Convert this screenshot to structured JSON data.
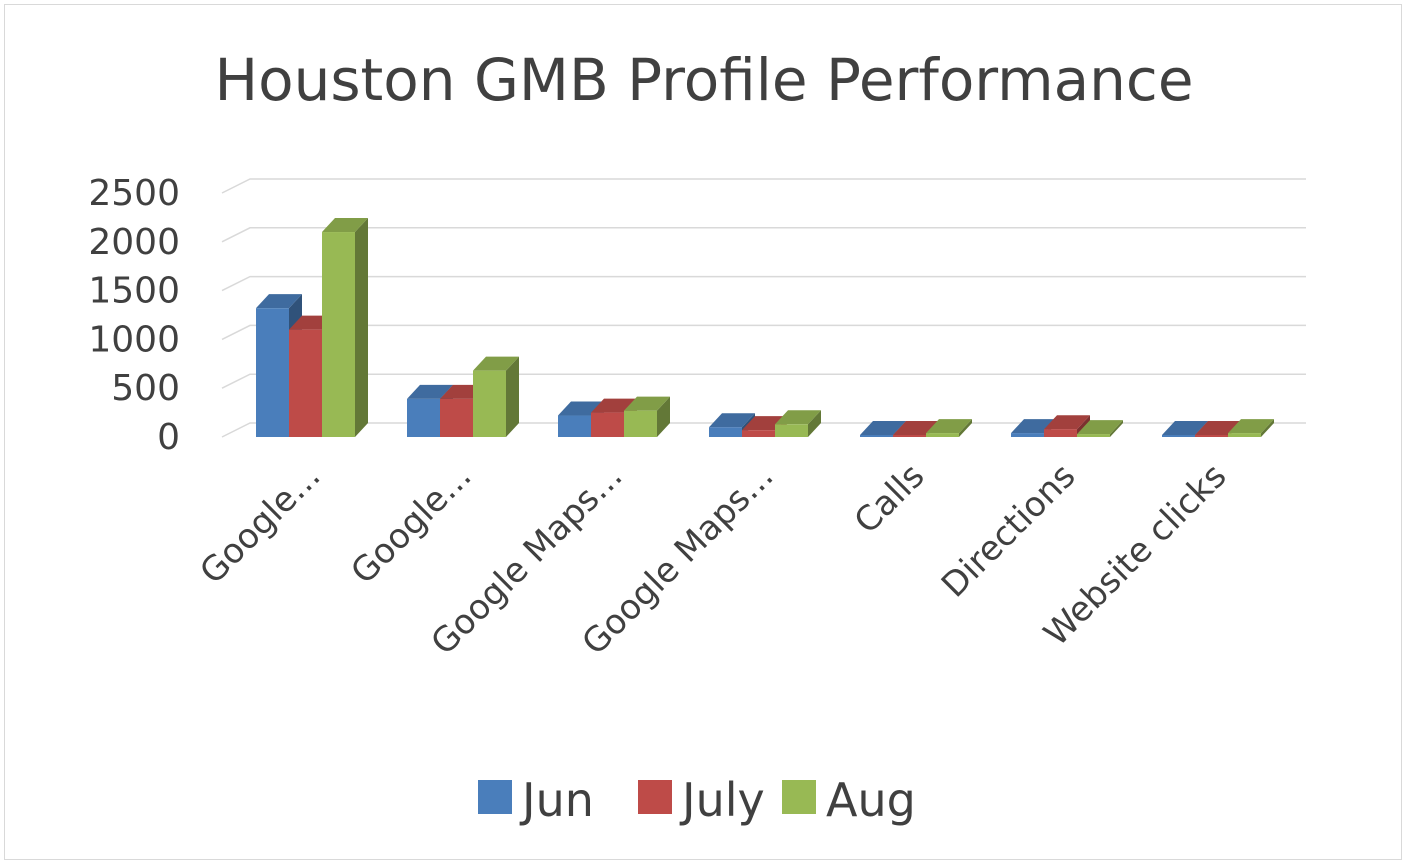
{
  "chart_data": {
    "type": "bar",
    "title": "Houston GMB Profile Performance",
    "categories": [
      "Google...",
      "Google...",
      "Google Maps...",
      "Google Maps...",
      "Calls",
      "Directions",
      "Website clicks"
    ],
    "series": [
      {
        "name": "Jun",
        "color": "#4a7ebb",
        "values": [
          1320,
          390,
          220,
          100,
          10,
          40,
          20
        ]
      },
      {
        "name": "July",
        "color": "#be4b48",
        "values": [
          1100,
          390,
          250,
          70,
          10,
          80,
          20
        ]
      },
      {
        "name": "Aug",
        "color": "#98b954",
        "values": [
          2100,
          680,
          270,
          130,
          40,
          30,
          40
        ]
      }
    ],
    "yticks": [
      "2500",
      "2000",
      "1500",
      "1000",
      "500",
      "0"
    ],
    "ylim": [
      0,
      2500
    ],
    "grid": true,
    "legend_position": "bottom"
  }
}
